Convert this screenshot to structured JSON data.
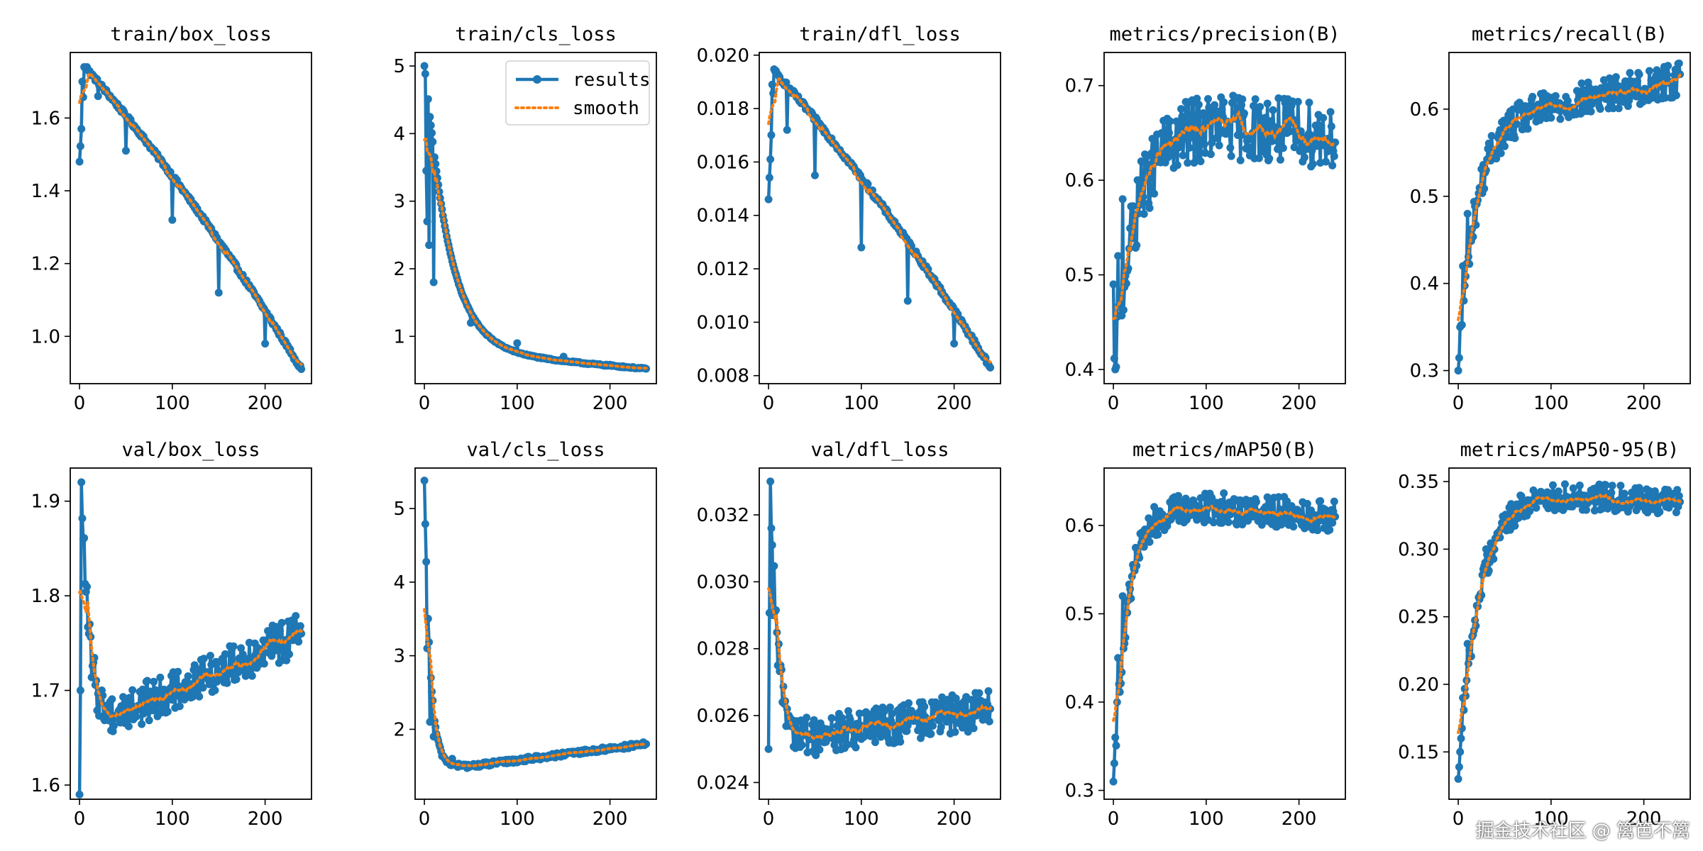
{
  "watermark": "掘金技术社区 @ 篱笆不篱",
  "colors": {
    "results": "#1f77b4",
    "smooth": "#ff7f0e"
  },
  "legend": {
    "results": "results",
    "smooth": "smooth",
    "position": "top-right"
  },
  "chart_data": [
    {
      "type": "line",
      "title": "train/box_loss",
      "xlim": [
        -10,
        250
      ],
      "ylim": [
        0.87,
        1.78
      ],
      "xticks": [
        0,
        100,
        200
      ],
      "yticks": [
        1.0,
        1.2,
        1.4,
        1.6
      ],
      "decimals": 1,
      "epochs": 240,
      "shape": "trainloss",
      "start": 1.48,
      "peak": 1.74,
      "end": 0.91,
      "noise": 0.006,
      "points": [
        [
          0,
          1.48
        ],
        [
          2,
          1.57
        ],
        [
          3,
          1.7
        ],
        [
          5,
          1.74
        ],
        [
          8,
          1.74
        ],
        [
          20,
          1.66
        ],
        [
          50,
          1.51
        ],
        [
          100,
          1.32
        ],
        [
          150,
          1.12
        ],
        [
          200,
          0.98
        ],
        [
          239,
          0.91
        ]
      ]
    },
    {
      "type": "line",
      "title": "train/cls_loss",
      "xlim": [
        -10,
        250
      ],
      "ylim": [
        0.3,
        5.2
      ],
      "xticks": [
        0,
        100,
        200
      ],
      "yticks": [
        1,
        2,
        3,
        4,
        5
      ],
      "decimals": 0,
      "epochs": 240,
      "shape": "decay",
      "start": 5.0,
      "end": 0.52,
      "tau": 25,
      "noise": 0.01,
      "legend": true,
      "points": [
        [
          0,
          5.0
        ],
        [
          2,
          3.45
        ],
        [
          3,
          2.7
        ],
        [
          5,
          2.35
        ],
        [
          10,
          1.8
        ],
        [
          50,
          1.2
        ],
        [
          100,
          0.9
        ],
        [
          150,
          0.7
        ],
        [
          200,
          0.58
        ],
        [
          239,
          0.52
        ]
      ]
    },
    {
      "type": "line",
      "title": "train/dfl_loss",
      "xlim": [
        -10,
        250
      ],
      "ylim": [
        0.0077,
        0.0201
      ],
      "xticks": [
        0,
        100,
        200
      ],
      "yticks": [
        0.008,
        0.01,
        0.012,
        0.014,
        0.016,
        0.018,
        0.02
      ],
      "decimals": 3,
      "epochs": 240,
      "shape": "trainloss",
      "start": 0.0146,
      "peak": 0.0194,
      "end": 0.0083,
      "noise": 0.0001,
      "points": [
        [
          0,
          0.0146
        ],
        [
          2,
          0.0161
        ],
        [
          4,
          0.0189
        ],
        [
          7,
          0.0194
        ],
        [
          20,
          0.0172
        ],
        [
          50,
          0.0155
        ],
        [
          100,
          0.0128
        ],
        [
          150,
          0.0108
        ],
        [
          200,
          0.0092
        ],
        [
          239,
          0.0083
        ]
      ]
    },
    {
      "type": "line",
      "title": "metrics/precision(B)",
      "xlim": [
        -10,
        250
      ],
      "ylim": [
        0.385,
        0.735
      ],
      "xticks": [
        0,
        100,
        200
      ],
      "yticks": [
        0.4,
        0.5,
        0.6,
        0.7
      ],
      "decimals": 1,
      "epochs": 240,
      "shape": "risefall",
      "start": 0.4,
      "peak": 0.66,
      "end": 0.645,
      "tau": 25,
      "noise": 0.035,
      "points": [
        [
          0,
          0.49
        ],
        [
          2,
          0.4
        ],
        [
          5,
          0.52
        ],
        [
          10,
          0.58
        ],
        [
          30,
          0.62
        ],
        [
          60,
          0.65
        ],
        [
          100,
          0.67
        ],
        [
          150,
          0.65
        ],
        [
          200,
          0.65
        ],
        [
          239,
          0.64
        ]
      ]
    },
    {
      "type": "line",
      "title": "metrics/recall(B)",
      "xlim": [
        -10,
        250
      ],
      "ylim": [
        0.285,
        0.665
      ],
      "xticks": [
        0,
        100,
        200
      ],
      "yticks": [
        0.3,
        0.4,
        0.5,
        0.6
      ],
      "decimals": 1,
      "epochs": 240,
      "shape": "rise",
      "start": 0.3,
      "mid": 0.58,
      "end": 0.635,
      "tau": 18,
      "noise": 0.02,
      "points": [
        [
          0,
          0.3
        ],
        [
          2,
          0.35
        ],
        [
          5,
          0.42
        ],
        [
          10,
          0.48
        ],
        [
          30,
          0.53
        ],
        [
          60,
          0.57
        ],
        [
          100,
          0.59
        ],
        [
          150,
          0.61
        ],
        [
          200,
          0.62
        ],
        [
          239,
          0.64
        ]
      ]
    },
    {
      "type": "line",
      "title": "val/box_loss",
      "xlim": [
        -10,
        250
      ],
      "ylim": [
        1.585,
        1.935
      ],
      "xticks": [
        0,
        100,
        200
      ],
      "yticks": [
        1.6,
        1.7,
        1.8,
        1.9
      ],
      "decimals": 1,
      "epochs": 240,
      "shape": "valloss",
      "start": 1.59,
      "peak": 1.92,
      "min": 1.67,
      "end": 1.76,
      "noise": 0.022,
      "points": [
        [
          0,
          1.59
        ],
        [
          1,
          1.7
        ],
        [
          2,
          1.92
        ],
        [
          4,
          1.86
        ],
        [
          10,
          1.76
        ],
        [
          30,
          1.67
        ],
        [
          60,
          1.68
        ],
        [
          100,
          1.69
        ],
        [
          150,
          1.72
        ],
        [
          200,
          1.75
        ],
        [
          239,
          1.76
        ]
      ]
    },
    {
      "type": "line",
      "title": "val/cls_loss",
      "xlim": [
        -10,
        250
      ],
      "ylim": [
        1.05,
        5.55
      ],
      "xticks": [
        0,
        100,
        200
      ],
      "yticks": [
        2,
        3,
        4,
        5
      ],
      "decimals": 0,
      "epochs": 240,
      "shape": "valcls",
      "start": 5.38,
      "min": 1.5,
      "end": 1.8,
      "tau": 6,
      "noise": 0.03,
      "points": [
        [
          0,
          5.38
        ],
        [
          3,
          3.1
        ],
        [
          6,
          2.1
        ],
        [
          10,
          1.9
        ],
        [
          30,
          1.6
        ],
        [
          50,
          1.5
        ],
        [
          100,
          1.55
        ],
        [
          150,
          1.68
        ],
        [
          200,
          1.76
        ],
        [
          239,
          1.8
        ]
      ]
    },
    {
      "type": "line",
      "title": "val/dfl_loss",
      "xlim": [
        -10,
        250
      ],
      "ylim": [
        0.0235,
        0.0334
      ],
      "xticks": [
        0,
        100,
        200
      ],
      "yticks": [
        0.024,
        0.026,
        0.028,
        0.03,
        0.032
      ],
      "decimals": 3,
      "epochs": 240,
      "shape": "valloss",
      "start": 0.025,
      "peak": 0.033,
      "min": 0.0253,
      "end": 0.0262,
      "noise": 0.0006,
      "points": [
        [
          0,
          0.025
        ],
        [
          2,
          0.033
        ],
        [
          3,
          0.0316
        ],
        [
          5,
          0.029
        ],
        [
          10,
          0.0275
        ],
        [
          30,
          0.0254
        ],
        [
          60,
          0.0252
        ],
        [
          100,
          0.0253
        ],
        [
          150,
          0.0257
        ],
        [
          200,
          0.026
        ],
        [
          239,
          0.0262
        ]
      ]
    },
    {
      "type": "line",
      "title": "metrics/mAP50(B)",
      "xlim": [
        -10,
        250
      ],
      "ylim": [
        0.29,
        0.665
      ],
      "xticks": [
        0,
        100,
        200
      ],
      "yticks": [
        0.3,
        0.4,
        0.5,
        0.6
      ],
      "decimals": 1,
      "epochs": 240,
      "shape": "risefall",
      "start": 0.31,
      "peak": 0.62,
      "end": 0.61,
      "tau": 15,
      "noise": 0.018,
      "points": [
        [
          0,
          0.31
        ],
        [
          2,
          0.36
        ],
        [
          5,
          0.45
        ],
        [
          10,
          0.52
        ],
        [
          30,
          0.58
        ],
        [
          60,
          0.61
        ],
        [
          100,
          0.62
        ],
        [
          150,
          0.61
        ],
        [
          200,
          0.61
        ],
        [
          239,
          0.61
        ]
      ]
    },
    {
      "type": "line",
      "title": "metrics/mAP50-95(B)",
      "xlim": [
        -10,
        250
      ],
      "ylim": [
        0.115,
        0.36
      ],
      "xticks": [
        0,
        100,
        200
      ],
      "yticks": [
        0.15,
        0.2,
        0.25,
        0.3,
        0.35
      ],
      "decimals": 2,
      "epochs": 240,
      "shape": "risefall",
      "start": 0.13,
      "peak": 0.34,
      "end": 0.335,
      "tau": 22,
      "noise": 0.01,
      "points": [
        [
          0,
          0.13
        ],
        [
          2,
          0.15
        ],
        [
          5,
          0.19
        ],
        [
          10,
          0.23
        ],
        [
          30,
          0.3
        ],
        [
          60,
          0.32
        ],
        [
          100,
          0.335
        ],
        [
          150,
          0.34
        ],
        [
          200,
          0.335
        ],
        [
          239,
          0.335
        ]
      ]
    }
  ]
}
